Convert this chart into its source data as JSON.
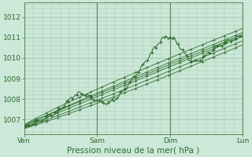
{
  "bg_color": "#cce8d8",
  "grid_color": "#a8c8b4",
  "line_color": "#2d6b2d",
  "xlabel": "Pression niveau de la mer( hPa )",
  "xlabel_fontsize": 7.5,
  "xlabel_color": "#2d6b2d",
  "tick_color": "#2d6b2d",
  "tick_fontsize": 6.5,
  "ytick_labels": [
    "1007",
    "1008",
    "1009",
    "1010",
    "1011",
    "1012"
  ],
  "ytick_values": [
    1007,
    1008,
    1009,
    1010,
    1011,
    1012
  ],
  "xtick_labels": [
    "Ven",
    "Sam",
    "Dim",
    "Lun"
  ],
  "xtick_values": [
    0,
    48,
    96,
    144
  ],
  "ylim": [
    1006.3,
    1012.7
  ],
  "xlim": [
    0,
    144
  ]
}
